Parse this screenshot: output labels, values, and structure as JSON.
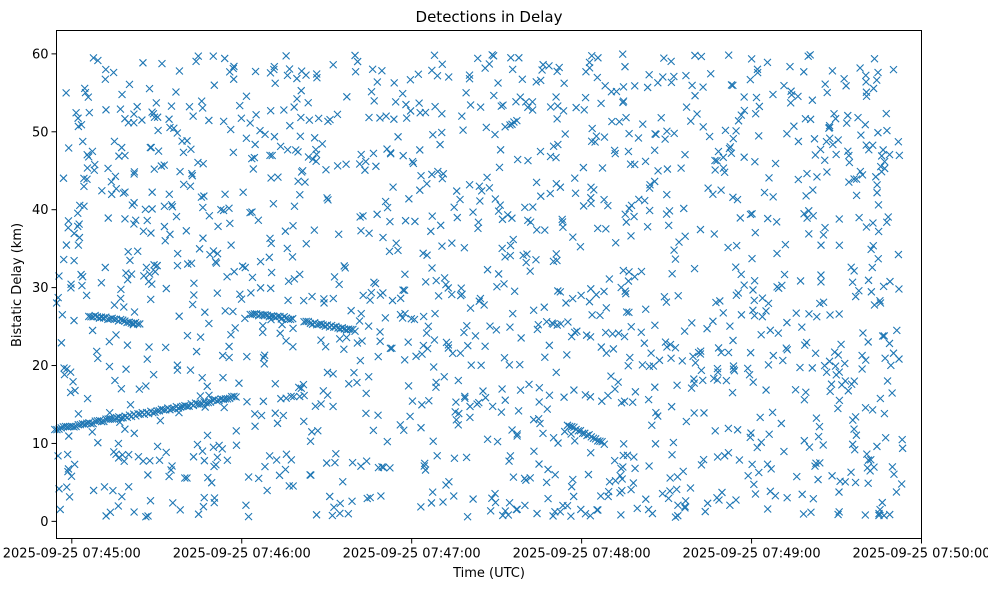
{
  "chart_data": {
    "type": "scatter",
    "title": "Detections in Delay",
    "xlabel": "Time (UTC)",
    "ylabel": "Bistatic Delay (km)",
    "x_ticks": [
      "2025-09-25 07:45:00",
      "2025-09-25 07:46:00",
      "2025-09-25 07:47:00",
      "2025-09-25 07:48:00",
      "2025-09-25 07:49:00",
      "2025-09-25 07:50:00"
    ],
    "y_ticks": [
      0,
      10,
      20,
      30,
      40,
      50,
      60
    ],
    "x_range_minutes_after_07_45": [
      -0.09,
      5.0
    ],
    "x_lim": [
      "2025-09-25 07:44:54",
      "2025-09-25 07:50:00"
    ],
    "ylim": [
      -2.2,
      63
    ],
    "grid": false,
    "marker": "x",
    "marker_color": "#1f77b4",
    "tracks": [
      {
        "start": [
          "2025-09-25 07:44:54",
          11.8
        ],
        "end": [
          "2025-09-25 07:45:58",
          16.0
        ]
      },
      {
        "start": [
          "2025-09-25 07:45:06",
          26.4
        ],
        "end": [
          "2025-09-25 07:45:24",
          25.4
        ]
      },
      {
        "start": [
          "2025-09-25 07:46:03",
          26.6
        ],
        "end": [
          "2025-09-25 07:46:18",
          26.0
        ]
      },
      {
        "start": [
          "2025-09-25 07:46:22",
          25.6
        ],
        "end": [
          "2025-09-25 07:46:40",
          24.5
        ]
      },
      {
        "start": [
          "2025-09-25 07:47:55",
          12.4
        ],
        "end": [
          "2025-09-25 07:48:08",
          10.0
        ]
      }
    ],
    "sample_points": [
      [
        "2025-09-25 07:44:58",
        55.0
      ],
      [
        "2025-09-25 07:45:12",
        58.0
      ],
      [
        "2025-09-25 07:45:38",
        57.8
      ],
      [
        "2025-09-25 07:46:40",
        59.8
      ],
      [
        "2025-09-25 07:47:35",
        59.5
      ],
      [
        "2025-09-25 07:48:40",
        59.8
      ],
      [
        "2025-09-25 07:49:20",
        59.7
      ],
      [
        "2025-09-25 07:48:25",
        1.0
      ],
      [
        "2025-09-25 07:49:45",
        1.0
      ],
      [
        "2025-09-25 07:45:22",
        1.2
      ],
      [
        "2025-09-25 07:47:55",
        2.0
      ],
      [
        "2025-09-25 07:49:53",
        4.8
      ]
    ]
  }
}
